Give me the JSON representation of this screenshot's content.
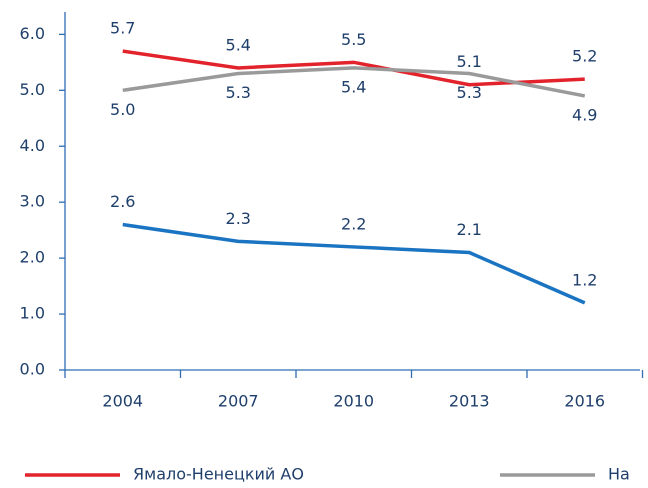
{
  "chart_data": {
    "type": "line",
    "categories": [
      "2004",
      "2007",
      "2010",
      "2013",
      "2016"
    ],
    "series": [
      {
        "name": "Ямало-Ненецкий АО",
        "color": "#e2232b",
        "values": [
          5.7,
          5.4,
          5.5,
          5.1,
          5.2
        ],
        "value_labels": [
          "5.7",
          "5.4",
          "5.5",
          "5.1",
          "5.2"
        ]
      },
      {
        "name": "На",
        "color": "#9a9a9a",
        "values": [
          5.0,
          5.3,
          5.4,
          5.3,
          4.9
        ],
        "value_labels": [
          "5.0",
          "5.3",
          "5.4",
          "5.3",
          "4.9"
        ]
      },
      {
        "color": "#1a74c2",
        "values": [
          2.6,
          2.3,
          2.2,
          2.1,
          1.2
        ],
        "value_labels": [
          "2.6",
          "2.3",
          "2.2",
          "2.1",
          "1.2"
        ]
      }
    ],
    "ylim": [
      0,
      6.4
    ],
    "yticks": [
      {
        "value": 0,
        "label": "0.0"
      },
      {
        "value": 1,
        "label": "1.0"
      },
      {
        "value": 2,
        "label": "2.0"
      },
      {
        "value": 3,
        "label": "3.0"
      },
      {
        "value": 4,
        "label": "4.0"
      },
      {
        "value": 5,
        "label": "5.0"
      },
      {
        "value": 6,
        "label": "6.0"
      }
    ]
  }
}
